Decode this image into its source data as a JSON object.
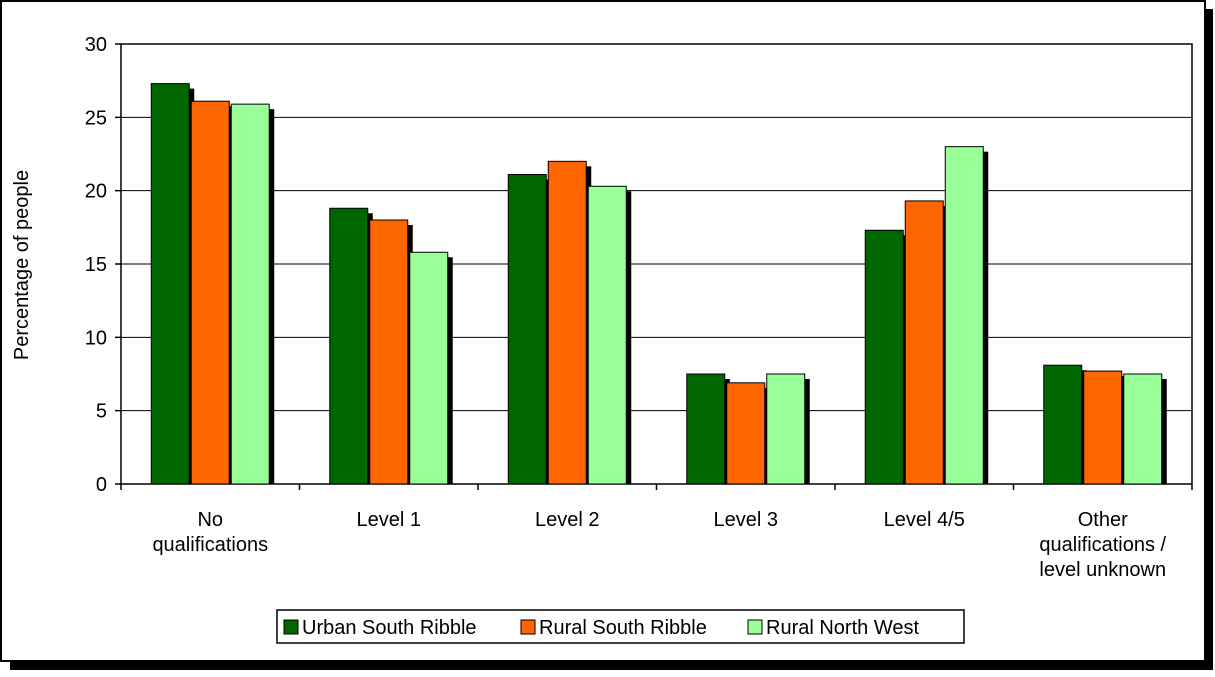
{
  "chart_data": {
    "type": "bar",
    "title": "",
    "xlabel": "",
    "ylabel": "Percentage of people",
    "ylim": [
      0,
      30
    ],
    "yticks": [
      0,
      5,
      10,
      15,
      20,
      25,
      30
    ],
    "grid": true,
    "legend_position": "bottom-center",
    "categories": [
      [
        "No",
        "qualifications"
      ],
      [
        "Level 1"
      ],
      [
        "Level 2"
      ],
      [
        "Level 3"
      ],
      [
        "Level 4/5"
      ],
      [
        "Other",
        "qualifications /",
        "level unknown"
      ]
    ],
    "series": [
      {
        "name": "Urban South Ribble",
        "color": "#006600",
        "values": [
          27.3,
          18.8,
          21.1,
          7.5,
          17.3,
          8.1
        ]
      },
      {
        "name": "Rural South Ribble",
        "color": "#ff6600",
        "values": [
          26.1,
          18.0,
          22.0,
          6.9,
          19.3,
          7.7
        ]
      },
      {
        "name": "Rural North West",
        "color": "#99ff99",
        "values": [
          25.9,
          15.8,
          20.3,
          7.5,
          23.0,
          7.5
        ]
      }
    ]
  }
}
